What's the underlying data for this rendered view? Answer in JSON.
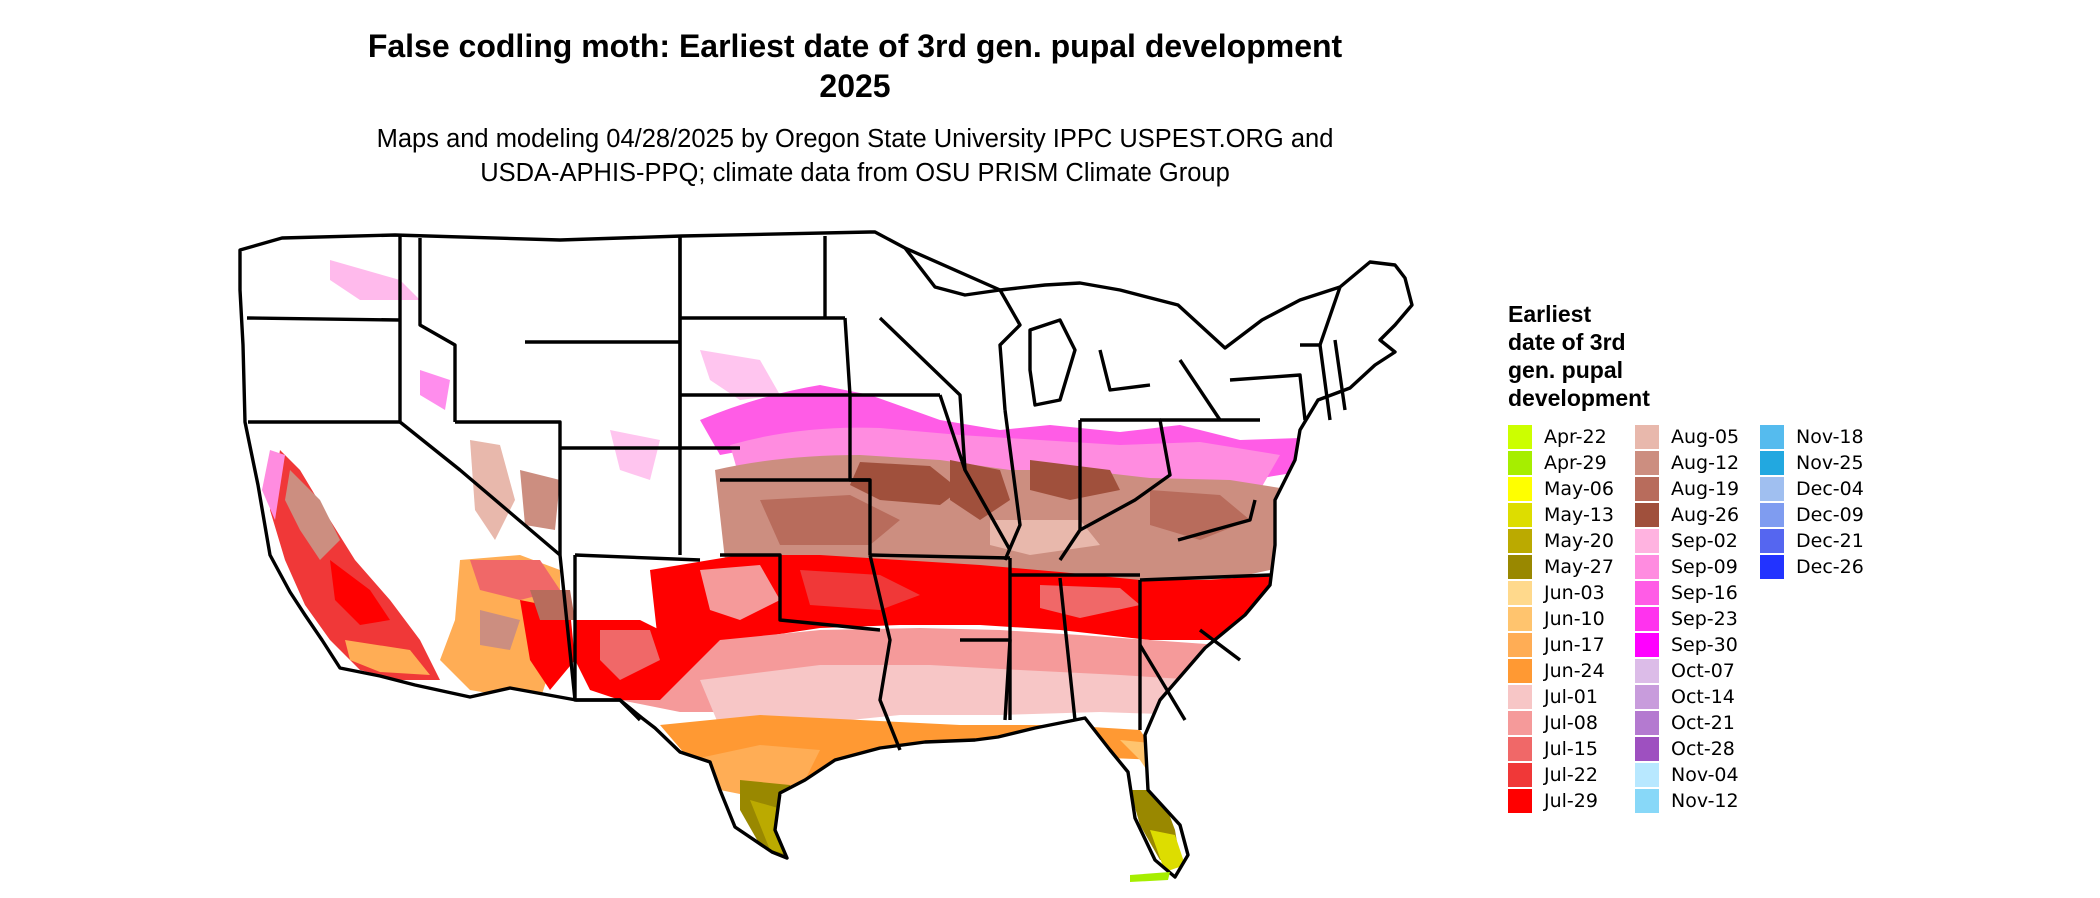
{
  "title": "False codling moth: Earliest date of 3rd gen. pupal development",
  "title_line2": "2025",
  "subtitle_line1": "Maps and modeling 04/28/2025 by Oregon State University IPPC USPEST.ORG and",
  "subtitle_line2": "USDA-APHIS-PPQ; climate data from OSU PRISM Climate Group",
  "legend": {
    "title_lines": [
      "Earliest",
      "date of 3rd",
      "gen. pupal",
      "development"
    ],
    "items": [
      {
        "label": "Apr-22",
        "color": "#ccff00"
      },
      {
        "label": "Apr-29",
        "color": "#a6ee00"
      },
      {
        "label": "May-06",
        "color": "#ffff00"
      },
      {
        "label": "May-13",
        "color": "#dddd00"
      },
      {
        "label": "May-20",
        "color": "#bbaa00"
      },
      {
        "label": "May-27",
        "color": "#998800"
      },
      {
        "label": "Jun-03",
        "color": "#ffd98c"
      },
      {
        "label": "Jun-10",
        "color": "#ffc46e"
      },
      {
        "label": "Jun-17",
        "color": "#ffad55"
      },
      {
        "label": "Jun-24",
        "color": "#ff9933"
      },
      {
        "label": "Jul-01",
        "color": "#f7c6c6"
      },
      {
        "label": "Jul-08",
        "color": "#f59a9a"
      },
      {
        "label": "Jul-15",
        "color": "#f06868"
      },
      {
        "label": "Jul-22",
        "color": "#f03838"
      },
      {
        "label": "Jul-29",
        "color": "#ff0000"
      },
      {
        "label": "Aug-05",
        "color": "#e8b8ac"
      },
      {
        "label": "Aug-12",
        "color": "#cc8e80"
      },
      {
        "label": "Aug-19",
        "color": "#b86c5c"
      },
      {
        "label": "Aug-26",
        "color": "#a0503c"
      },
      {
        "label": "Sep-02",
        "color": "#ffb3e0"
      },
      {
        "label": "Sep-09",
        "color": "#ff8ce0"
      },
      {
        "label": "Sep-16",
        "color": "#ff5ce6"
      },
      {
        "label": "Sep-23",
        "color": "#ff33ee"
      },
      {
        "label": "Sep-30",
        "color": "#ff00ff"
      },
      {
        "label": "Oct-07",
        "color": "#dcbce8"
      },
      {
        "label": "Oct-14",
        "color": "#c89cdc"
      },
      {
        "label": "Oct-21",
        "color": "#b47ad0"
      },
      {
        "label": "Oct-28",
        "color": "#9e50c0"
      },
      {
        "label": "Nov-04",
        "color": "#b8e8ff"
      },
      {
        "label": "Nov-12",
        "color": "#88d8f8"
      },
      {
        "label": "Nov-18",
        "color": "#55bbee"
      },
      {
        "label": "Nov-25",
        "color": "#22a8e0"
      },
      {
        "label": "Dec-04",
        "color": "#a0bff0"
      },
      {
        "label": "Dec-09",
        "color": "#7f9cf0"
      },
      {
        "label": "Dec-21",
        "color": "#5566f0"
      },
      {
        "label": "Dec-26",
        "color": "#2233ff"
      }
    ]
  }
}
